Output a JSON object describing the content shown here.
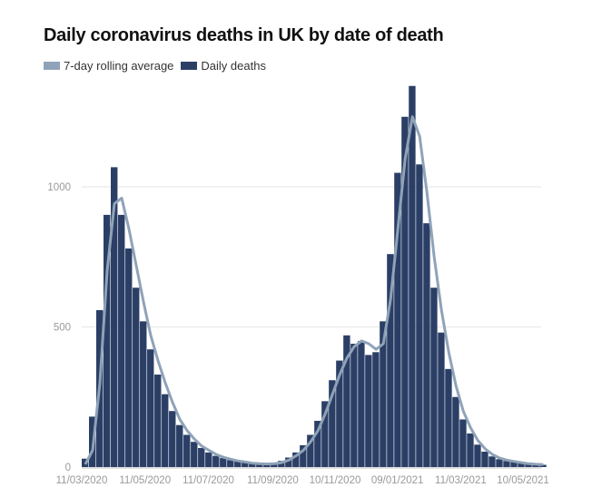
{
  "chart_data": {
    "type": "bar",
    "title": "Daily coronavirus deaths in UK by date of death",
    "legend": {
      "placement": "top-left",
      "entries": [
        "7-day rolling average",
        "Daily deaths"
      ]
    },
    "colors": {
      "rolling_average": "#8fa3b8",
      "daily_deaths": "#2b3f66",
      "grid": "#e6e6e6"
    },
    "ylim": [
      0,
      1400
    ],
    "yticks": [
      0,
      500,
      1000
    ],
    "xticks": [
      "11/03/2020",
      "11/05/2020",
      "11/07/2020",
      "11/09/2020",
      "10/11/2020",
      "09/01/2021",
      "11/03/2021",
      "10/05/2021"
    ],
    "grid": "horizontal",
    "x": [
      "2020-03-11",
      "2020-03-18",
      "2020-03-25",
      "2020-04-01",
      "2020-04-08",
      "2020-04-15",
      "2020-04-22",
      "2020-04-29",
      "2020-05-06",
      "2020-05-13",
      "2020-05-20",
      "2020-05-27",
      "2020-06-03",
      "2020-06-10",
      "2020-06-17",
      "2020-06-24",
      "2020-07-01",
      "2020-07-08",
      "2020-07-15",
      "2020-07-22",
      "2020-07-29",
      "2020-08-05",
      "2020-08-12",
      "2020-08-19",
      "2020-08-26",
      "2020-09-02",
      "2020-09-09",
      "2020-09-16",
      "2020-09-23",
      "2020-09-30",
      "2020-10-07",
      "2020-10-14",
      "2020-10-21",
      "2020-10-28",
      "2020-11-04",
      "2020-11-11",
      "2020-11-18",
      "2020-11-25",
      "2020-12-02",
      "2020-12-09",
      "2020-12-16",
      "2020-12-23",
      "2020-12-30",
      "2021-01-06",
      "2021-01-13",
      "2021-01-20",
      "2021-01-27",
      "2021-02-03",
      "2021-02-10",
      "2021-02-17",
      "2021-02-24",
      "2021-03-03",
      "2021-03-10",
      "2021-03-17",
      "2021-03-24",
      "2021-03-31",
      "2021-04-07",
      "2021-04-14",
      "2021-04-21",
      "2021-04-28",
      "2021-05-05",
      "2021-05-12",
      "2021-05-19",
      "2021-05-26"
    ],
    "series": [
      {
        "name": "Daily deaths",
        "type": "bar",
        "values": [
          30,
          180,
          560,
          900,
          1070,
          900,
          780,
          640,
          520,
          420,
          330,
          260,
          200,
          150,
          115,
          90,
          68,
          52,
          40,
          32,
          25,
          20,
          16,
          13,
          11,
          12,
          14,
          22,
          34,
          52,
          78,
          115,
          165,
          235,
          310,
          380,
          470,
          440,
          450,
          400,
          410,
          520,
          760,
          1050,
          1250,
          1360,
          1080,
          870,
          640,
          480,
          350,
          250,
          170,
          120,
          80,
          55,
          38,
          28,
          22,
          18,
          14,
          11,
          10,
          8
        ]
      },
      {
        "name": "7-day rolling average",
        "type": "line",
        "values": [
          10,
          60,
          300,
          700,
          940,
          960,
          850,
          720,
          590,
          470,
          380,
          300,
          230,
          170,
          130,
          100,
          75,
          60,
          45,
          35,
          28,
          22,
          18,
          14,
          12,
          11,
          12,
          16,
          25,
          40,
          60,
          90,
          130,
          190,
          260,
          330,
          390,
          430,
          450,
          440,
          420,
          440,
          600,
          850,
          1100,
          1250,
          1180,
          980,
          750,
          560,
          410,
          290,
          200,
          140,
          95,
          65,
          45,
          32,
          25,
          20,
          16,
          12,
          10,
          9
        ]
      }
    ]
  }
}
